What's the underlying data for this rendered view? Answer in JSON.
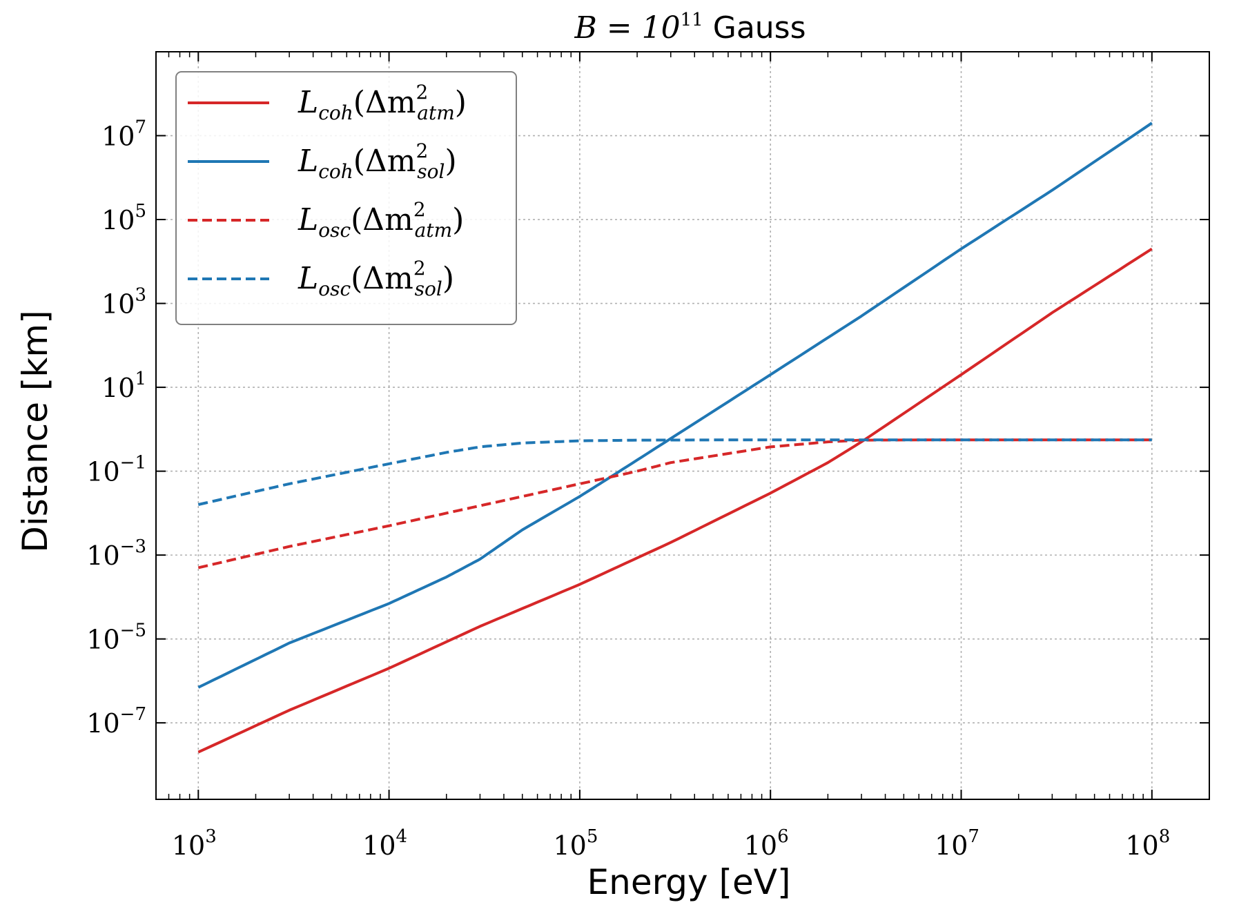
{
  "chart_data": {
    "type": "line",
    "title": {
      "math": "B = 10",
      "exponent": "11",
      "unit": "Gauss"
    },
    "xlabel": "Energy [eV]",
    "ylabel": "Distance [km]",
    "xscale": "log",
    "yscale": "log",
    "xlim": [
      600,
      200000000
    ],
    "ylim": [
      1.5e-09,
      1000000000
    ],
    "grid": true,
    "legend_position": "upper-left",
    "x_ticks": [
      {
        "value": 1000,
        "base": "10",
        "exp": "3"
      },
      {
        "value": 10000,
        "base": "10",
        "exp": "4"
      },
      {
        "value": 100000,
        "base": "10",
        "exp": "5"
      },
      {
        "value": 1000000,
        "base": "10",
        "exp": "6"
      },
      {
        "value": 10000000,
        "base": "10",
        "exp": "7"
      },
      {
        "value": 100000000,
        "base": "10",
        "exp": "8"
      }
    ],
    "y_ticks": [
      {
        "value": 10000000,
        "base": "10",
        "exp": "7"
      },
      {
        "value": 100000,
        "base": "10",
        "exp": "5"
      },
      {
        "value": 1000,
        "base": "10",
        "exp": "3"
      },
      {
        "value": 10,
        "base": "10",
        "exp": "1"
      },
      {
        "value": 0.1,
        "base": "10",
        "exp": "−1"
      },
      {
        "value": 0.001,
        "base": "10",
        "exp": "−3"
      },
      {
        "value": 1e-05,
        "base": "10",
        "exp": "−5"
      },
      {
        "value": 1e-07,
        "base": "10",
        "exp": "−7"
      }
    ],
    "series": [
      {
        "name": "L_coh(Δm²_atm)",
        "label": {
          "main": "L",
          "sub": "coh",
          "open": "(Δm",
          "sup": "2",
          "msub": "atm",
          "close": ")"
        },
        "color": "#d62728",
        "style": "solid",
        "x": [
          1000,
          3000,
          10000,
          30000,
          100000,
          300000,
          1000000,
          2000000,
          3000000,
          10000000,
          30000000,
          100000000
        ],
        "y": [
          2e-08,
          2e-07,
          2e-06,
          2e-05,
          0.0002,
          0.002,
          0.03,
          0.16,
          0.5,
          20,
          600,
          20000
        ]
      },
      {
        "name": "L_coh(Δm²_sol)",
        "label": {
          "main": "L",
          "sub": "coh",
          "open": "(Δm",
          "sup": "2",
          "msub": "sol",
          "close": ")"
        },
        "color": "#1f77b4",
        "style": "solid",
        "x": [
          1000,
          3000,
          10000,
          20000,
          30000,
          50000,
          100000,
          150000,
          300000,
          1000000,
          3000000,
          10000000,
          30000000,
          100000000
        ],
        "y": [
          7e-07,
          8e-06,
          7e-05,
          0.0003,
          0.0008,
          0.004,
          0.025,
          0.08,
          0.6,
          20,
          500,
          20000,
          500000,
          20000000
        ]
      },
      {
        "name": "L_osc(Δm²_atm)",
        "label": {
          "main": "L",
          "sub": "osc",
          "open": "(Δm",
          "sup": "2",
          "msub": "atm",
          "close": ")"
        },
        "color": "#d62728",
        "style": "dashed",
        "x": [
          1000,
          3000,
          10000,
          30000,
          100000,
          200000,
          300000,
          1000000,
          2000000,
          3000000,
          10000000,
          100000000
        ],
        "y": [
          0.0005,
          0.0016,
          0.005,
          0.015,
          0.05,
          0.1,
          0.16,
          0.38,
          0.5,
          0.55,
          0.56,
          0.56
        ]
      },
      {
        "name": "L_osc(Δm²_sol)",
        "label": {
          "main": "L",
          "sub": "osc",
          "open": "(Δm",
          "sup": "2",
          "msub": "sol",
          "close": ")"
        },
        "color": "#1f77b4",
        "style": "dashed",
        "x": [
          1000,
          3000,
          10000,
          20000,
          30000,
          50000,
          100000,
          200000,
          1000000,
          100000000
        ],
        "y": [
          0.016,
          0.05,
          0.15,
          0.28,
          0.38,
          0.47,
          0.53,
          0.55,
          0.56,
          0.56
        ]
      }
    ]
  }
}
